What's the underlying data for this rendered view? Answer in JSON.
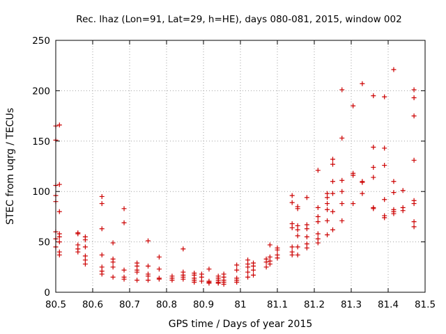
{
  "chart_data": {
    "type": "scatter",
    "title": "Rec. lhaz (Lon=91, Lat=29, h=HE), days 080-081, 2015, window 002",
    "xlabel": "GPS time / Days of year 2015",
    "ylabel": "STEC from uqrg / TECUs",
    "xlim": [
      80.5,
      81.5
    ],
    "ylim": [
      0,
      250
    ],
    "xticks": [
      "80.5",
      "80.6",
      "80.7",
      "80.8",
      "80.9",
      "81",
      "81.1",
      "81.2",
      "81.3",
      "81.4",
      "81.5"
    ],
    "xtick_values": [
      80.5,
      80.6,
      80.7,
      80.8,
      80.9,
      81.0,
      81.1,
      81.2,
      81.3,
      81.4,
      81.5
    ],
    "yticks": [
      "0",
      "50",
      "100",
      "150",
      "200",
      "250"
    ],
    "ytick_values": [
      0,
      50,
      100,
      150,
      200,
      250
    ],
    "grid": true,
    "grid_style": "dotted",
    "marker": "+",
    "color": "#cc0000",
    "points": [
      [
        80.5,
        165
      ],
      [
        80.5,
        151
      ],
      [
        80.5,
        106
      ],
      [
        80.5,
        96
      ],
      [
        80.5,
        90
      ],
      [
        80.5,
        60
      ],
      [
        80.5,
        53
      ],
      [
        80.5,
        45
      ],
      [
        80.51,
        166
      ],
      [
        80.51,
        107
      ],
      [
        80.51,
        80
      ],
      [
        80.51,
        58
      ],
      [
        80.51,
        55
      ],
      [
        80.51,
        50
      ],
      [
        80.51,
        40
      ],
      [
        80.51,
        37
      ],
      [
        80.56,
        59
      ],
      [
        80.56,
        58
      ],
      [
        80.56,
        47
      ],
      [
        80.56,
        43
      ],
      [
        80.56,
        40
      ],
      [
        80.58,
        55
      ],
      [
        80.58,
        52
      ],
      [
        80.58,
        45
      ],
      [
        80.58,
        36
      ],
      [
        80.58,
        32
      ],
      [
        80.58,
        28
      ],
      [
        80.625,
        95
      ],
      [
        80.625,
        88
      ],
      [
        80.625,
        63
      ],
      [
        80.625,
        37
      ],
      [
        80.625,
        25
      ],
      [
        80.625,
        21
      ],
      [
        80.625,
        18
      ],
      [
        80.655,
        49
      ],
      [
        80.655,
        33
      ],
      [
        80.655,
        30
      ],
      [
        80.655,
        25
      ],
      [
        80.655,
        15
      ],
      [
        80.685,
        83
      ],
      [
        80.685,
        69
      ],
      [
        80.685,
        22
      ],
      [
        80.685,
        15
      ],
      [
        80.685,
        13
      ],
      [
        80.72,
        29
      ],
      [
        80.72,
        26
      ],
      [
        80.72,
        22
      ],
      [
        80.72,
        20
      ],
      [
        80.72,
        12
      ],
      [
        80.75,
        51
      ],
      [
        80.75,
        26
      ],
      [
        80.75,
        18
      ],
      [
        80.75,
        16
      ],
      [
        80.75,
        12
      ],
      [
        80.78,
        35
      ],
      [
        80.78,
        23
      ],
      [
        80.78,
        14
      ],
      [
        80.78,
        13
      ],
      [
        80.815,
        16
      ],
      [
        80.815,
        14
      ],
      [
        80.815,
        12
      ],
      [
        80.845,
        43
      ],
      [
        80.845,
        20
      ],
      [
        80.845,
        17
      ],
      [
        80.845,
        15
      ],
      [
        80.845,
        13
      ],
      [
        80.875,
        19
      ],
      [
        80.875,
        17
      ],
      [
        80.875,
        14
      ],
      [
        80.875,
        12
      ],
      [
        80.875,
        10
      ],
      [
        80.895,
        18
      ],
      [
        80.895,
        15
      ],
      [
        80.895,
        11
      ],
      [
        80.915,
        23
      ],
      [
        80.915,
        11
      ],
      [
        80.915,
        10
      ],
      [
        80.915,
        9
      ],
      [
        80.94,
        16
      ],
      [
        80.94,
        14
      ],
      [
        80.94,
        12
      ],
      [
        80.94,
        10
      ],
      [
        80.94,
        9
      ],
      [
        80.955,
        18
      ],
      [
        80.955,
        15
      ],
      [
        80.955,
        12
      ],
      [
        80.955,
        10
      ],
      [
        80.955,
        8
      ],
      [
        80.99,
        27
      ],
      [
        80.99,
        22
      ],
      [
        80.99,
        14
      ],
      [
        80.99,
        12
      ],
      [
        80.99,
        10
      ],
      [
        81.02,
        32
      ],
      [
        81.02,
        28
      ],
      [
        81.02,
        25
      ],
      [
        81.02,
        20
      ],
      [
        81.02,
        15
      ],
      [
        81.035,
        29
      ],
      [
        81.035,
        26
      ],
      [
        81.035,
        22
      ],
      [
        81.035,
        17
      ],
      [
        81.07,
        33
      ],
      [
        81.07,
        30
      ],
      [
        81.07,
        25
      ],
      [
        81.08,
        47
      ],
      [
        81.08,
        35
      ],
      [
        81.08,
        31
      ],
      [
        81.08,
        28
      ],
      [
        81.1,
        44
      ],
      [
        81.1,
        42
      ],
      [
        81.1,
        37
      ],
      [
        81.1,
        34
      ],
      [
        81.14,
        96
      ],
      [
        81.14,
        89
      ],
      [
        81.14,
        68
      ],
      [
        81.14,
        64
      ],
      [
        81.14,
        45
      ],
      [
        81.14,
        40
      ],
      [
        81.14,
        37
      ],
      [
        81.155,
        85
      ],
      [
        81.155,
        83
      ],
      [
        81.155,
        66
      ],
      [
        81.155,
        62
      ],
      [
        81.155,
        56
      ],
      [
        81.155,
        45
      ],
      [
        81.155,
        37
      ],
      [
        81.18,
        94
      ],
      [
        81.18,
        67
      ],
      [
        81.18,
        63
      ],
      [
        81.18,
        55
      ],
      [
        81.18,
        48
      ],
      [
        81.18,
        44
      ],
      [
        81.21,
        121
      ],
      [
        81.21,
        84
      ],
      [
        81.21,
        75
      ],
      [
        81.21,
        70
      ],
      [
        81.21,
        58
      ],
      [
        81.21,
        53
      ],
      [
        81.21,
        49
      ],
      [
        81.235,
        98
      ],
      [
        81.235,
        94
      ],
      [
        81.235,
        88
      ],
      [
        81.235,
        82
      ],
      [
        81.235,
        71
      ],
      [
        81.235,
        57
      ],
      [
        81.25,
        132
      ],
      [
        81.25,
        127
      ],
      [
        81.25,
        110
      ],
      [
        81.25,
        98
      ],
      [
        81.25,
        80
      ],
      [
        81.25,
        62
      ],
      [
        81.275,
        201
      ],
      [
        81.275,
        153
      ],
      [
        81.275,
        111
      ],
      [
        81.275,
        100
      ],
      [
        81.275,
        88
      ],
      [
        81.275,
        71
      ],
      [
        81.305,
        185
      ],
      [
        81.305,
        118
      ],
      [
        81.305,
        116
      ],
      [
        81.305,
        88
      ],
      [
        81.33,
        207
      ],
      [
        81.33,
        110
      ],
      [
        81.33,
        109
      ],
      [
        81.33,
        98
      ],
      [
        81.36,
        195
      ],
      [
        81.36,
        144
      ],
      [
        81.36,
        124
      ],
      [
        81.36,
        114
      ],
      [
        81.36,
        84
      ],
      [
        81.36,
        83
      ],
      [
        81.39,
        194
      ],
      [
        81.39,
        143
      ],
      [
        81.39,
        126
      ],
      [
        81.39,
        92
      ],
      [
        81.39,
        76
      ],
      [
        81.39,
        74
      ],
      [
        81.415,
        221
      ],
      [
        81.415,
        110
      ],
      [
        81.415,
        99
      ],
      [
        81.415,
        82
      ],
      [
        81.415,
        80
      ],
      [
        81.415,
        78
      ],
      [
        81.44,
        101
      ],
      [
        81.44,
        84
      ],
      [
        81.44,
        81
      ],
      [
        81.47,
        201
      ],
      [
        81.47,
        193
      ],
      [
        81.47,
        175
      ],
      [
        81.47,
        131
      ],
      [
        81.47,
        91
      ],
      [
        81.47,
        88
      ],
      [
        81.47,
        70
      ],
      [
        81.47,
        65
      ]
    ]
  }
}
